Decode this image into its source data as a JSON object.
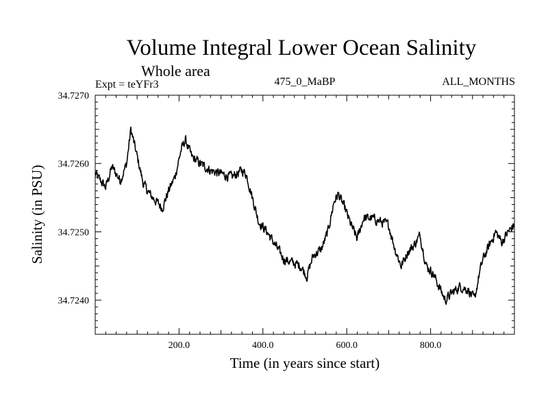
{
  "chart_data": {
    "type": "line",
    "title": "Volume Integral Lower Ocean Salinity",
    "subtitle": "Whole area",
    "header_left": "Expt = teYFr3",
    "header_center": "475_0_MaBP",
    "header_right": "ALL_MONTHS",
    "xlabel": "Time (in years since start)",
    "ylabel": "Salinity (in PSU)",
    "xlim": [
      0,
      1000
    ],
    "ylim": [
      34.7235,
      34.727
    ],
    "x_ticks": [
      {
        "value": 200,
        "label": "200.0"
      },
      {
        "value": 400,
        "label": "400.0"
      },
      {
        "value": 600,
        "label": "600.0"
      },
      {
        "value": 800,
        "label": "800.0"
      }
    ],
    "y_ticks": [
      {
        "value": 34.724,
        "label": "34.7240"
      },
      {
        "value": 34.725,
        "label": "34.7250"
      },
      {
        "value": 34.726,
        "label": "34.7260"
      },
      {
        "value": 34.727,
        "label": "34.7270"
      }
    ],
    "series": [
      {
        "name": "salinity",
        "x": [
          0,
          25,
          40,
          60,
          75,
          85,
          100,
          115,
          130,
          145,
          160,
          175,
          190,
          205,
          215,
          230,
          250,
          275,
          300,
          325,
          350,
          360,
          375,
          390,
          410,
          430,
          450,
          470,
          490,
          505,
          520,
          540,
          555,
          570,
          580,
          595,
          610,
          625,
          640,
          660,
          680,
          700,
          715,
          730,
          745,
          760,
          775,
          790,
          805,
          820,
          835,
          850,
          870,
          890,
          905,
          915,
          925,
          940,
          955,
          970,
          985,
          1000
        ],
        "values": [
          34.72585,
          34.72565,
          34.72595,
          34.72575,
          34.726,
          34.7265,
          34.7261,
          34.7257,
          34.72555,
          34.72545,
          34.72535,
          34.7256,
          34.7258,
          34.7262,
          34.72635,
          34.7261,
          34.726,
          34.7259,
          34.72585,
          34.7258,
          34.7259,
          34.72585,
          34.7255,
          34.72515,
          34.725,
          34.7248,
          34.7246,
          34.72455,
          34.7245,
          34.72435,
          34.72465,
          34.72475,
          34.725,
          34.72545,
          34.72555,
          34.72535,
          34.7251,
          34.7249,
          34.7252,
          34.7252,
          34.72515,
          34.7251,
          34.72475,
          34.7245,
          34.7247,
          34.7248,
          34.72495,
          34.7245,
          34.7244,
          34.7242,
          34.724,
          34.7241,
          34.7242,
          34.72415,
          34.724,
          34.72435,
          34.7246,
          34.7248,
          34.725,
          34.72485,
          34.725,
          34.7251
        ]
      }
    ]
  }
}
